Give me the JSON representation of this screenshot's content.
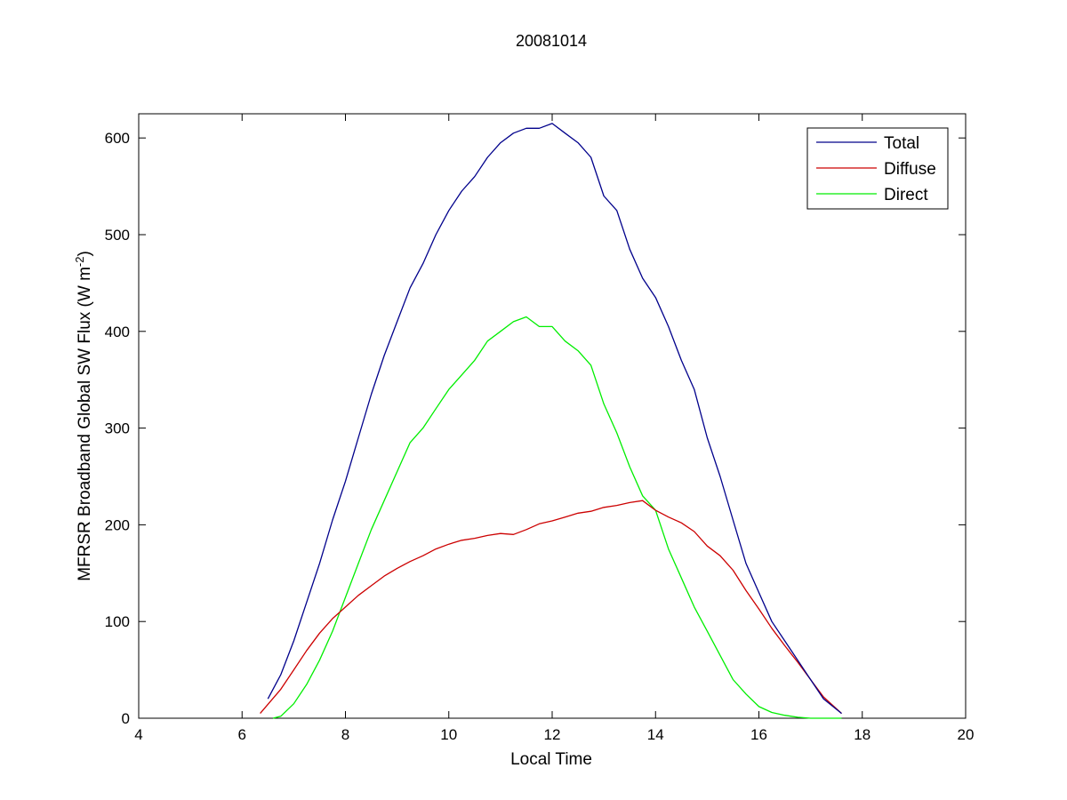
{
  "chart_data": {
    "type": "line",
    "title": "20081014",
    "xlabel": "Local Time",
    "ylabel_main": "MFRSR Broadband Global SW Flux (W m",
    "ylabel_sup": "-2",
    "ylabel_close": ")",
    "xlim": [
      4,
      20
    ],
    "ylim": [
      0,
      625
    ],
    "xticks": [
      4,
      6,
      8,
      10,
      12,
      14,
      16,
      18,
      20
    ],
    "yticks": [
      0,
      100,
      200,
      300,
      400,
      500,
      600
    ],
    "grid": false,
    "legend_position": "top-right",
    "series": [
      {
        "name": "Total",
        "color": "#00008b",
        "x": [
          6.5,
          6.75,
          7.0,
          7.25,
          7.5,
          7.75,
          8.0,
          8.25,
          8.5,
          8.75,
          9.0,
          9.25,
          9.5,
          9.75,
          10.0,
          10.25,
          10.5,
          10.75,
          11.0,
          11.25,
          11.5,
          11.75,
          12.0,
          12.25,
          12.5,
          12.75,
          13.0,
          13.25,
          13.5,
          13.75,
          14.0,
          14.25,
          14.5,
          14.75,
          15.0,
          15.25,
          15.5,
          15.75,
          16.0,
          16.25,
          16.5,
          16.75,
          17.0,
          17.25,
          17.6
        ],
        "y": [
          20,
          45,
          80,
          120,
          160,
          205,
          245,
          290,
          335,
          375,
          410,
          445,
          470,
          500,
          525,
          545,
          560,
          580,
          595,
          605,
          610,
          610,
          615,
          605,
          595,
          580,
          540,
          525,
          485,
          455,
          435,
          405,
          370,
          340,
          290,
          250,
          205,
          160,
          130,
          100,
          80,
          60,
          40,
          20,
          5
        ]
      },
      {
        "name": "Diffuse",
        "color": "#cc0000",
        "x": [
          6.35,
          6.75,
          7.0,
          7.25,
          7.5,
          7.75,
          8.0,
          8.25,
          8.5,
          8.75,
          9.0,
          9.25,
          9.5,
          9.75,
          10.0,
          10.25,
          10.5,
          10.75,
          11.0,
          11.25,
          11.5,
          11.75,
          12.0,
          12.25,
          12.5,
          12.75,
          13.0,
          13.25,
          13.5,
          13.75,
          14.0,
          14.25,
          14.5,
          14.75,
          15.0,
          15.25,
          15.5,
          15.75,
          16.0,
          16.25,
          16.5,
          16.75,
          17.0,
          17.25,
          17.6
        ],
        "y": [
          5,
          30,
          50,
          70,
          88,
          103,
          115,
          127,
          137,
          147,
          155,
          162,
          168,
          175,
          180,
          184,
          186,
          189,
          191,
          190,
          195,
          201,
          204,
          208,
          212,
          214,
          218,
          220,
          223,
          225,
          215,
          208,
          202,
          193,
          178,
          168,
          153,
          132,
          113,
          93,
          75,
          58,
          40,
          22,
          5
        ]
      },
      {
        "name": "Direct",
        "color": "#00ee00",
        "x": [
          6.6,
          6.75,
          7.0,
          7.25,
          7.5,
          7.75,
          8.0,
          8.25,
          8.5,
          8.75,
          9.0,
          9.25,
          9.5,
          9.75,
          10.0,
          10.25,
          10.5,
          10.75,
          11.0,
          11.25,
          11.5,
          11.75,
          12.0,
          12.25,
          12.5,
          12.75,
          13.0,
          13.25,
          13.5,
          13.75,
          14.0,
          14.25,
          14.5,
          14.75,
          15.0,
          15.25,
          15.5,
          15.75,
          16.0,
          16.25,
          16.5,
          16.75,
          17.0,
          17.25,
          17.6
        ],
        "y": [
          0,
          2,
          15,
          35,
          60,
          90,
          125,
          160,
          195,
          225,
          255,
          285,
          300,
          320,
          340,
          355,
          370,
          390,
          400,
          410,
          415,
          405,
          405,
          390,
          380,
          365,
          325,
          295,
          260,
          230,
          215,
          175,
          145,
          115,
          90,
          65,
          40,
          25,
          12,
          6,
          3,
          1,
          0,
          0,
          0
        ]
      }
    ]
  }
}
